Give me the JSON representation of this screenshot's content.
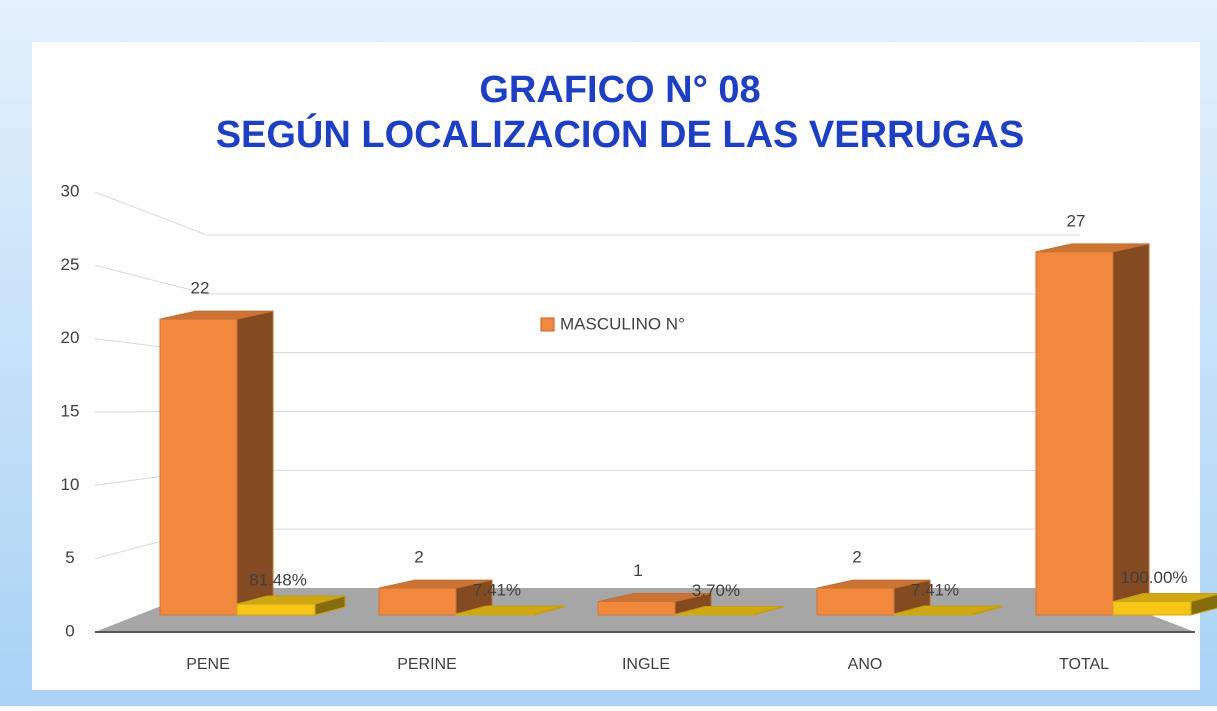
{
  "chart_data": {
    "type": "bar3d",
    "title": "GRAFICO N° 08",
    "subtitle": "SEGÚN LOCALIZACION DE LAS VERRUGAS",
    "categories": [
      "PENE",
      "PERINE",
      "INGLE",
      "ANO",
      "TOTAL"
    ],
    "series": [
      {
        "name": "MASCULINO N°",
        "color": "#f0883e",
        "values": [
          22,
          2,
          1,
          2,
          27
        ]
      },
      {
        "color": "#f5c518",
        "values": [
          0.8148,
          0.0741,
          0.037,
          0.0741,
          1.0
        ],
        "value_labels": [
          "81.48%",
          "7.41%",
          "3.70%",
          "7.41%",
          "100.00%"
        ]
      }
    ],
    "ylim": [
      0,
      30
    ],
    "yticks": [
      0,
      5,
      10,
      15,
      20,
      25,
      30
    ],
    "grid": true,
    "legend": "center"
  }
}
